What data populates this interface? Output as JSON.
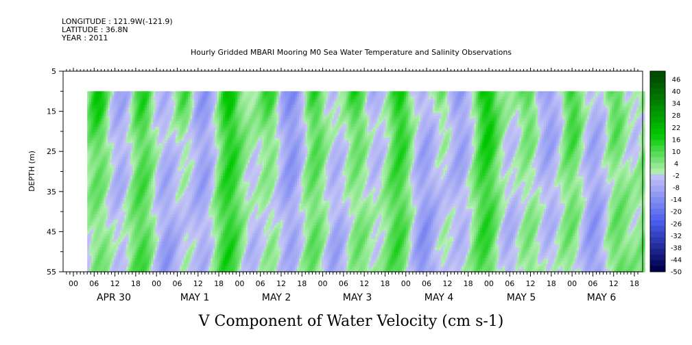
{
  "header": {
    "longitude": "LONGITUDE : 121.9W(-121.9)",
    "latitude": "LATITUDE : 36.8N",
    "year": "YEAR : 2011"
  },
  "chart_data": {
    "type": "heatmap",
    "title": "Hourly Gridded MBARI Mooring M0 Sea Water Temperature and Salinity Observations",
    "xlabel": "V Component of Water Velocity (cm s-1)",
    "ylabel": "DEPTH (m)",
    "y_axis": {
      "reversed": true,
      "ylim": [
        5,
        55
      ],
      "tick_labels": [
        "5",
        "15",
        "25",
        "35",
        "45",
        "55"
      ]
    },
    "x_axis": {
      "hour_tick_labels": [
        "00",
        "06",
        "12",
        "18",
        "00",
        "06",
        "12",
        "18",
        "00",
        "06",
        "12",
        "18",
        "00",
        "06",
        "12",
        "18",
        "00",
        "06",
        "12",
        "18",
        "00",
        "06",
        "12",
        "18",
        "00",
        "06",
        "12",
        "18"
      ],
      "day_labels": [
        "APR 30",
        "MAY  1",
        "MAY  2",
        "MAY  3",
        "MAY  4",
        "MAY  5",
        "MAY  6"
      ]
    },
    "data_extent": {
      "depth_min": 10,
      "depth_max": 55,
      "hours_from": 4,
      "hours_to": 165
    },
    "colorbar": {
      "labels": [
        "46",
        "40",
        "34",
        "28",
        "22",
        "16",
        "10",
        "4",
        "-2",
        "-8",
        "-14",
        "-20",
        "-26",
        "-32",
        "-38",
        "-44",
        "-50"
      ],
      "levels": [
        52,
        49,
        46,
        43,
        40,
        37,
        34,
        31,
        28,
        25,
        22,
        19,
        16,
        13,
        10,
        7,
        4,
        1,
        -2,
        -5,
        -8,
        -11,
        -14,
        -17,
        -20,
        -23,
        -26,
        -29,
        -32,
        -35,
        -38,
        -41,
        -44,
        -47,
        -50
      ],
      "colors": {
        "positive_dark": "#004d00",
        "positive_mid": "#00c800",
        "positive_light": "#b4f0b4",
        "negative_light": "#c8c8f5",
        "negative_mid": "#4b5ff0",
        "negative_dark": "#000050"
      }
    }
  }
}
